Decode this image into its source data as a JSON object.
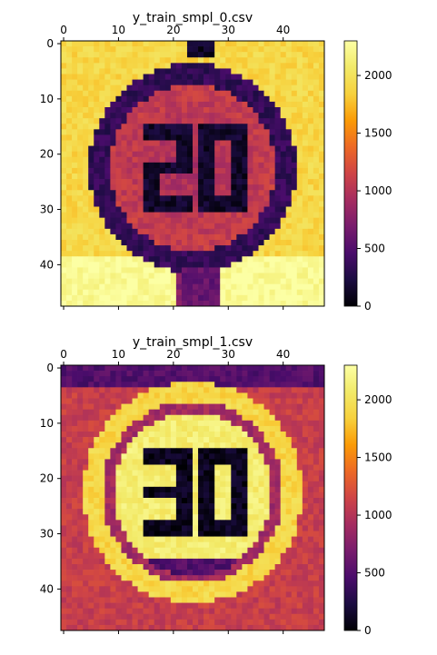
{
  "chart_data": [
    {
      "type": "heatmap",
      "title": "y_train_smpl_0.csv",
      "grid_size": [
        48,
        48
      ],
      "xlim": [
        -0.5,
        47.5
      ],
      "ylim": [
        47.5,
        -0.5
      ],
      "x_ticks": [
        0,
        10,
        20,
        30,
        40
      ],
      "y_ticks": [
        0,
        10,
        20,
        30,
        40
      ],
      "x_tick_position": "top",
      "grid": false,
      "colormap": "inferno",
      "colorbar": {
        "placement": "right",
        "range": [
          0,
          2300
        ],
        "ticks": [
          0,
          500,
          1000,
          1500,
          2000
        ]
      },
      "content_description": "Circular road sign with the number 20: dark ring and dark digits on a bright background",
      "sign_text": "20",
      "values_estimate": {
        "background": 1900,
        "ring": 350,
        "inside_circle": 1100,
        "digits": 150,
        "corner_bright": 2250
      }
    },
    {
      "type": "heatmap",
      "title": "y_train_smpl_1.csv",
      "grid_size": [
        48,
        48
      ],
      "xlim": [
        -0.5,
        47.5
      ],
      "ylim": [
        47.5,
        -0.5
      ],
      "x_ticks": [
        0,
        10,
        20,
        30,
        40
      ],
      "y_ticks": [
        0,
        10,
        20,
        30,
        40
      ],
      "x_tick_position": "top",
      "grid": false,
      "colormap": "inferno",
      "colorbar": {
        "placement": "right",
        "range": [
          0,
          2300
        ],
        "ticks": [
          0,
          500,
          1000,
          1500,
          2000
        ]
      },
      "content_description": "Circular road sign with the number 30: bright ring and bright interior with dark digits on a medium background",
      "sign_text": "30",
      "values_estimate": {
        "background": 1100,
        "ring": 1900,
        "inside_circle": 2100,
        "digits": 100,
        "dark_band": 500
      }
    }
  ],
  "colors": {
    "low": "#000004",
    "mid": "#bc3754",
    "high": "#fcffa4"
  }
}
